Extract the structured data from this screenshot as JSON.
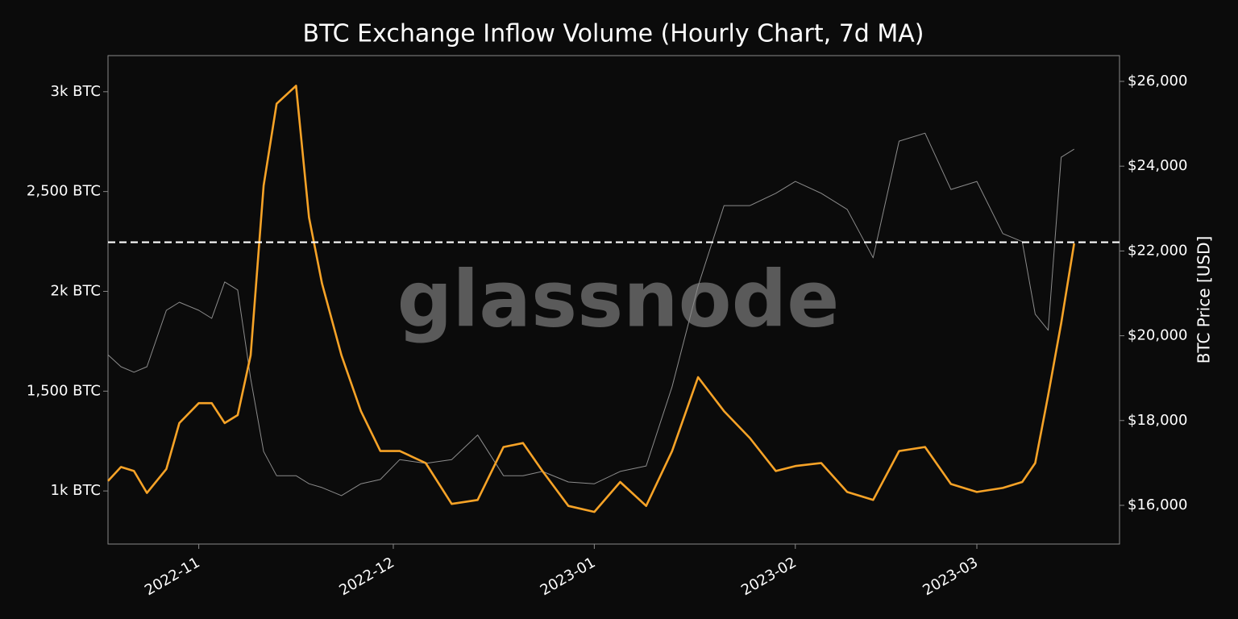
{
  "chart_data": {
    "type": "line",
    "title": "BTC Exchange Inflow Volume (Hourly Chart, 7d MA)",
    "watermark": "glassnode",
    "y2label": "BTC Price [USD]",
    "x": [
      "2022-10-18",
      "2022-10-20",
      "2022-10-22",
      "2022-10-24",
      "2022-10-27",
      "2022-10-29",
      "2022-11-01",
      "2022-11-03",
      "2022-11-05",
      "2022-11-07",
      "2022-11-09",
      "2022-11-11",
      "2022-11-13",
      "2022-11-16",
      "2022-11-18",
      "2022-11-20",
      "2022-11-23",
      "2022-11-26",
      "2022-11-29",
      "2022-12-02",
      "2022-12-06",
      "2022-12-10",
      "2022-12-14",
      "2022-12-18",
      "2022-12-21",
      "2022-12-24",
      "2022-12-28",
      "2023-01-01",
      "2023-01-05",
      "2023-01-09",
      "2023-01-13",
      "2023-01-17",
      "2023-01-21",
      "2023-01-25",
      "2023-01-29",
      "2023-02-01",
      "2023-02-05",
      "2023-02-09",
      "2023-02-13",
      "2023-02-17",
      "2023-02-21",
      "2023-02-25",
      "2023-03-01",
      "2023-03-05",
      "2023-03-08",
      "2023-03-10",
      "2023-03-12",
      "2023-03-14",
      "2023-03-16"
    ],
    "series": [
      {
        "color": "#8c8c8c",
        "axis": "y2",
        "width": 1,
        "values": [
          19550,
          19270,
          19140,
          19270,
          20600,
          20790,
          20600,
          20410,
          21270,
          21080,
          18990,
          17270,
          16700,
          16700,
          16510,
          16420,
          16230,
          16510,
          16610,
          17080,
          16990,
          17080,
          17660,
          16700,
          16700,
          16800,
          16550,
          16510,
          16800,
          16930,
          18800,
          21170,
          23070,
          23070,
          23360,
          23640,
          23360,
          22980,
          21840,
          24590,
          24780,
          23450,
          23640,
          22410,
          22220,
          20510,
          20130,
          24210,
          24400
        ]
      },
      {
        "color": "#f7a327",
        "axis": "y",
        "width": 2.6,
        "values": [
          1050,
          1120,
          1100,
          990,
          1110,
          1340,
          1440,
          1440,
          1340,
          1380,
          1680,
          2530,
          2940,
          3030,
          2370,
          2040,
          1680,
          1400,
          1200,
          1200,
          1140,
          935,
          955,
          1220,
          1240,
          1100,
          925,
          895,
          1045,
          925,
          1200,
          1570,
          1400,
          1265,
          1100,
          1125,
          1140,
          995,
          955,
          1200,
          1220,
          1035,
          995,
          1015,
          1045,
          1140,
          1480,
          1840,
          2240
        ]
      }
    ],
    "reference_line": {
      "axis": "y",
      "value": 2246,
      "color": "#ffffff"
    },
    "xlim": [
      "2022-10-18",
      "2023-03-23"
    ],
    "xticks": [
      "2022-11",
      "2022-12",
      "2023-01",
      "2023-02",
      "2023-03"
    ],
    "ylim": [
      734,
      3181
    ],
    "yticks": [
      {
        "value": 1000,
        "label": "1k BTC"
      },
      {
        "value": 1500,
        "label": "1,500 BTC"
      },
      {
        "value": 2000,
        "label": "2k BTC"
      },
      {
        "value": 2500,
        "label": "2,500 BTC"
      },
      {
        "value": 3000,
        "label": "3k BTC"
      }
    ],
    "y2lim": [
      15087,
      26608
    ],
    "y2ticks": [
      {
        "value": 16000,
        "label": "$16,000"
      },
      {
        "value": 18000,
        "label": "$18,000"
      },
      {
        "value": 20000,
        "label": "$20,000"
      },
      {
        "value": 22000,
        "label": "$22,000"
      },
      {
        "value": 24000,
        "label": "$24,000"
      },
      {
        "value": 26000,
        "label": "$26,000"
      }
    ]
  }
}
